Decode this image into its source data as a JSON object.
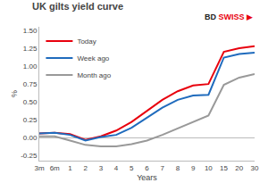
{
  "chart_data": {
    "type": "line",
    "title": "UK gilts yield curve",
    "xlabel": "Years",
    "ylabel": "%",
    "categories": [
      "3m",
      "6m",
      "1",
      "2",
      "3",
      "4",
      "5",
      "6",
      "7",
      "8",
      "9",
      "10",
      "15",
      "20",
      "30"
    ],
    "series": [
      {
        "name": "Today",
        "color": "#e8000d",
        "values": [
          0.06,
          0.07,
          0.05,
          -0.03,
          0.02,
          0.1,
          0.22,
          0.38,
          0.53,
          0.65,
          0.73,
          0.75,
          1.2,
          1.25,
          1.28
        ]
      },
      {
        "name": "Week ago",
        "color": "#1f6bbd",
        "values": [
          0.06,
          0.07,
          0.04,
          -0.04,
          0.01,
          0.04,
          0.14,
          0.28,
          0.42,
          0.53,
          0.59,
          0.6,
          1.12,
          1.17,
          1.19
        ]
      },
      {
        "name": "Month ago",
        "color": "#999999",
        "values": [
          0.02,
          0.02,
          -0.04,
          -0.1,
          -0.12,
          -0.12,
          -0.09,
          -0.04,
          0.04,
          0.13,
          0.22,
          0.31,
          0.74,
          0.84,
          0.89
        ]
      }
    ],
    "ylim": [
      -0.32,
      1.55
    ],
    "yticks": [
      -0.25,
      {
        "value": 0.0,
        "label": "0.00"
      },
      0.25,
      {
        "value": 0.5,
        "label": "0.50"
      },
      0.75,
      {
        "value": 1.0,
        "label": "1.00"
      },
      1.25,
      {
        "value": 1.5,
        "label": "1.50"
      }
    ],
    "grid": false,
    "legend": "upper left",
    "annotations": [
      {
        "text": "BD",
        "color": "#222222"
      },
      {
        "text": "SWISS",
        "color": "#e8000d"
      },
      {
        "text": "▶",
        "color": "#e8000d"
      }
    ]
  }
}
